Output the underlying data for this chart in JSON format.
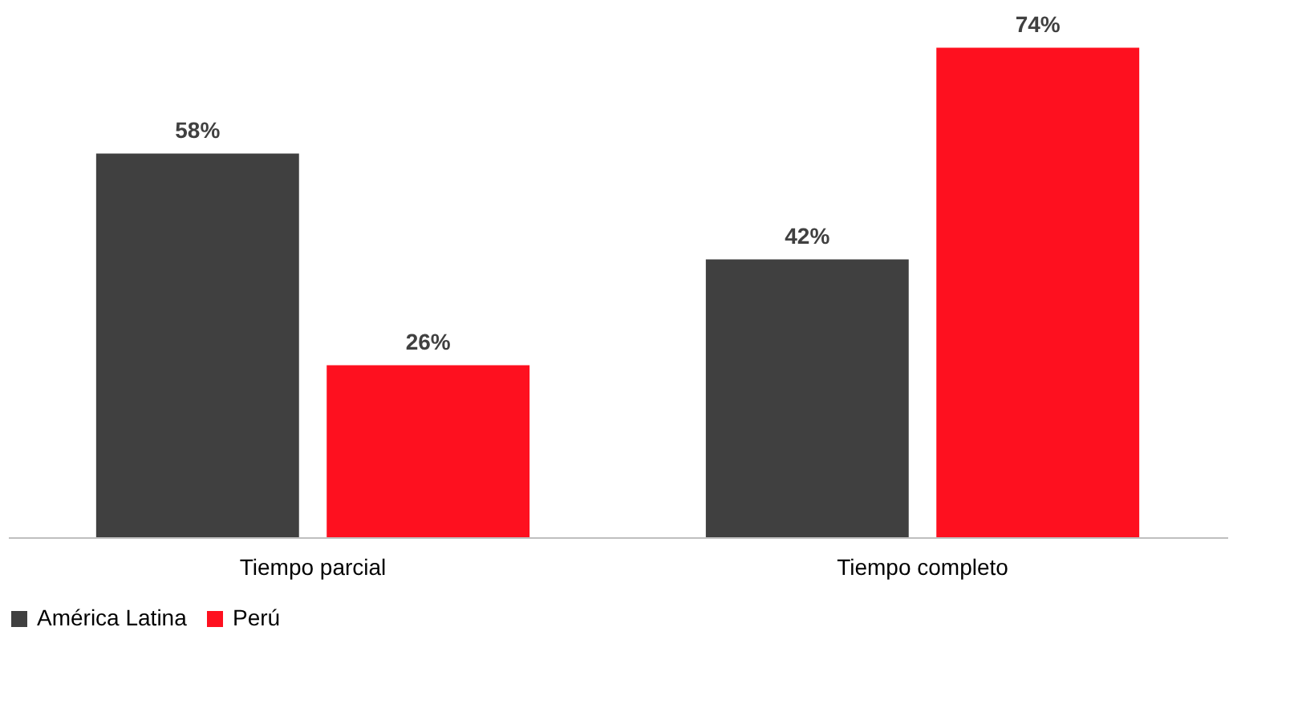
{
  "chart_data": {
    "type": "bar",
    "categories": [
      "Tiempo parcial",
      "Tiempo completo"
    ],
    "series": [
      {
        "name": "América Latina",
        "color": "#404040",
        "values": [
          58,
          42
        ],
        "value_labels": [
          "58%",
          "42%"
        ]
      },
      {
        "name": "Perú",
        "color": "#fe101f",
        "values": [
          26,
          74
        ],
        "value_labels": [
          "26%",
          "74%"
        ]
      }
    ],
    "legend": "bottom",
    "grid": false
  }
}
